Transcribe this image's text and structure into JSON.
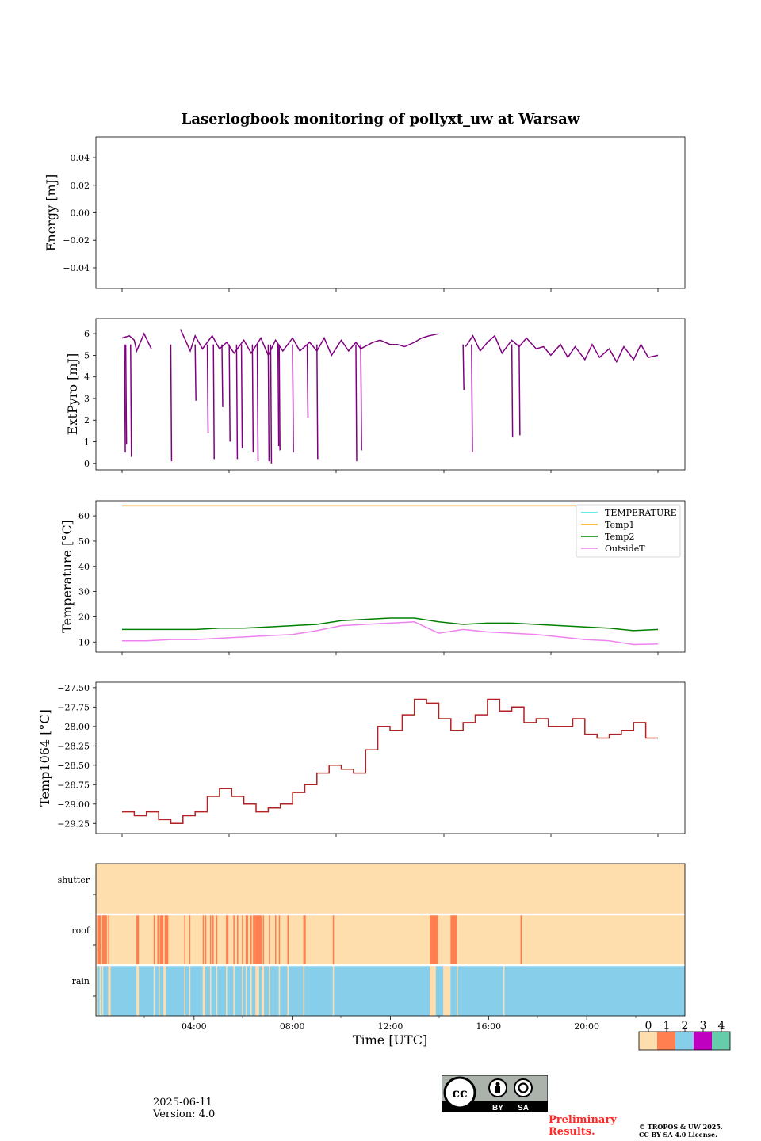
{
  "title": "Laserlogbook monitoring of pollyxt_uw at Warsaw",
  "footer": {
    "date": "2025-06-11",
    "version": "Version: 4.0",
    "preliminary_line1": "Preliminary",
    "preliminary_line2": "Results.",
    "copyright_line1": "© TROPOS & UW 2025.",
    "copyright_line2": "CC BY SA 4.0 License.",
    "license_badge": {
      "by": "BY",
      "sa": "SA",
      "cc": "cc"
    }
  },
  "chart_data": [
    {
      "type": "line",
      "panel": "energy",
      "ylabel": "Energy [mJ]",
      "ylim": [
        -0.055,
        0.055
      ],
      "yticks": [
        "0.04",
        "0.02",
        "0.00",
        "−0.02",
        "−0.04"
      ],
      "ytick_values": [
        0.04,
        0.02,
        0.0,
        -0.02,
        -0.04
      ],
      "series": []
    },
    {
      "type": "line",
      "panel": "extpyro",
      "ylabel": "ExtPyro [mJ]",
      "ylim": [
        -0.3,
        6.7
      ],
      "yticks": [
        "6",
        "5",
        "4",
        "3",
        "2",
        "1",
        "0"
      ],
      "ytick_values": [
        6,
        5,
        4,
        3,
        2,
        1,
        0
      ],
      "color": "#800080",
      "baseline_hours": [
        0.0,
        0.3,
        0.5,
        0.6,
        0.9,
        1.2,
        1.6,
        2.0,
        2.4,
        2.8,
        3.0,
        3.3,
        3.7,
        4.0,
        4.3,
        4.6,
        5.0,
        5.3,
        5.7,
        6.0,
        6.3,
        6.6,
        7.0,
        7.3,
        7.7,
        8.0,
        8.3,
        8.6,
        9.0,
        9.3,
        9.6,
        9.8,
        10.3,
        10.6,
        11.0,
        11.3,
        11.6,
        12.0,
        12.3,
        12.6,
        13.0,
        13.3,
        13.6,
        13.8,
        14.1,
        14.4,
        14.7,
        15.0,
        15.3,
        15.6,
        16.0,
        16.3,
        16.6,
        17.0,
        17.3,
        17.6,
        18.0,
        18.3,
        18.6,
        19.0,
        19.3,
        19.6,
        20.0,
        20.3,
        20.6,
        21.0,
        21.3,
        21.6,
        22.0
      ],
      "baseline_values": [
        5.8,
        5.9,
        5.7,
        5.2,
        6.0,
        5.3,
        null,
        null,
        6.2,
        5.2,
        5.9,
        5.3,
        5.9,
        5.3,
        5.6,
        5.1,
        5.7,
        5.1,
        5.8,
        5.0,
        5.7,
        5.2,
        5.8,
        5.2,
        5.6,
        5.2,
        5.8,
        5.0,
        5.7,
        5.2,
        5.6,
        5.3,
        5.6,
        5.7,
        5.5,
        5.5,
        5.4,
        5.6,
        5.8,
        5.9,
        6.0,
        null,
        null,
        null,
        5.4,
        5.9,
        5.2,
        5.6,
        5.9,
        5.1,
        5.7,
        5.4,
        5.8,
        5.3,
        5.4,
        5.0,
        5.5,
        4.9,
        5.4,
        4.8,
        5.5,
        4.9,
        5.3,
        4.7,
        5.4,
        4.8,
        5.5,
        4.9,
        5.0
      ],
      "dips_hours": [
        0.1,
        0.15,
        0.35,
        2.0,
        3.0,
        3.5,
        3.75,
        4.1,
        4.4,
        4.7,
        4.9,
        5.35,
        5.55,
        6.0,
        6.1,
        6.4,
        6.45,
        7.0,
        7.6,
        8.0,
        9.6,
        9.8,
        14.0,
        14.35,
        16.0,
        16.3
      ],
      "dips_values": [
        0.5,
        0.9,
        0.3,
        0.1,
        2.9,
        1.4,
        0.2,
        2.6,
        1.0,
        0.2,
        0.7,
        0.5,
        0.1,
        0.1,
        0.0,
        0.8,
        0.6,
        0.5,
        2.1,
        0.2,
        0.1,
        0.6,
        3.4,
        0.5,
        1.2,
        1.3
      ]
    },
    {
      "type": "line",
      "panel": "temperature",
      "ylabel": "Temperature [°C]",
      "ylim": [
        6,
        66
      ],
      "yticks": [
        "60",
        "50",
        "40",
        "30",
        "20",
        "10"
      ],
      "ytick_values": [
        60,
        50,
        40,
        30,
        20,
        10
      ],
      "legend_placement": "upper right",
      "series": [
        {
          "name": "TEMPERATURE",
          "color": "#33e6e6",
          "values": []
        },
        {
          "name": "Temp1",
          "color": "#ffa500",
          "x": [
            0,
            22
          ],
          "values": [
            64,
            64
          ]
        },
        {
          "name": "Temp2",
          "color": "#008000",
          "x": [
            0,
            1,
            2,
            3,
            4,
            5,
            6,
            7,
            8,
            9,
            10,
            11,
            12,
            13,
            14,
            15,
            16,
            17,
            18,
            19,
            20,
            21,
            22
          ],
          "values": [
            15,
            15,
            15,
            15,
            15.5,
            15.5,
            16,
            16.5,
            17,
            18.5,
            19,
            19.5,
            19.5,
            18,
            17,
            17.5,
            17.5,
            17,
            16.5,
            16,
            15.5,
            14.5,
            15
          ]
        },
        {
          "name": "OutsideT",
          "color": "#ee82ee",
          "x": [
            0,
            1,
            2,
            3,
            4,
            5,
            6,
            7,
            8,
            9,
            10,
            11,
            12,
            13,
            14,
            15,
            16,
            17,
            18,
            19,
            20,
            21,
            22
          ],
          "values": [
            10.5,
            10.5,
            11,
            11,
            11.5,
            12,
            12.5,
            13,
            14.5,
            16.5,
            17,
            17.5,
            18,
            13.5,
            15,
            14,
            13.5,
            13,
            12,
            11,
            10.5,
            9,
            9.2
          ]
        }
      ]
    },
    {
      "type": "line",
      "panel": "temp1064",
      "ylabel": "Temp1064 [°C]",
      "ylim": [
        -29.38,
        -27.43
      ],
      "yticks": [
        "−27.50",
        "−27.75",
        "−28.00",
        "−28.25",
        "−28.50",
        "−28.75",
        "−29.00",
        "−29.25"
      ],
      "ytick_values": [
        -27.5,
        -27.75,
        -28.0,
        -28.25,
        -28.5,
        -28.75,
        -29.0,
        -29.25
      ],
      "color": "#b22222",
      "x": [
        0,
        0.5,
        1.0,
        1.5,
        2.0,
        2.5,
        3.0,
        3.5,
        4.0,
        4.5,
        5.0,
        5.5,
        6.0,
        6.5,
        7.0,
        7.5,
        8.0,
        8.5,
        9.0,
        9.5,
        10.0,
        10.5,
        11.0,
        11.5,
        12.0,
        12.5,
        13.0,
        13.5,
        14.0,
        14.5,
        15.0,
        15.5,
        16.0,
        16.5,
        17.0,
        17.5,
        18.0,
        18.5,
        19.0,
        19.5,
        20.0,
        20.5,
        21.0,
        21.5,
        22.0
      ],
      "values": [
        -29.1,
        -29.15,
        -29.1,
        -29.2,
        -29.25,
        -29.15,
        -29.1,
        -28.9,
        -28.8,
        -28.9,
        -29.0,
        -29.1,
        -29.05,
        -29.0,
        -28.85,
        -28.75,
        -28.6,
        -28.5,
        -28.55,
        -28.6,
        -28.3,
        -28.0,
        -28.05,
        -27.85,
        -27.65,
        -27.7,
        -27.9,
        -28.05,
        -27.95,
        -27.85,
        -27.65,
        -27.8,
        -27.75,
        -27.95,
        -27.9,
        -28.0,
        -28.0,
        -27.9,
        -28.1,
        -28.15,
        -28.1,
        -28.05,
        -27.95,
        -28.15,
        -28.15
      ],
      "grid": false
    },
    {
      "type": "heatmap",
      "panel": "status",
      "rows": [
        "shutter",
        "roof",
        "rain"
      ],
      "xlabel": "Time [UTC]",
      "xticks": [
        "04:00",
        "08:00",
        "12:00",
        "16:00",
        "20:00"
      ],
      "xtick_hours": [
        4,
        8,
        12,
        16,
        20
      ],
      "xlim_hours": [
        0,
        24
      ],
      "shutter": [
        {
          "from": 0,
          "to": 24,
          "code": 0
        }
      ],
      "roof_code1_intervals": [
        [
          0.05,
          0.2
        ],
        [
          0.25,
          0.45
        ],
        [
          0.5,
          0.55
        ],
        [
          1.65,
          1.75
        ],
        [
          2.35,
          2.4
        ],
        [
          2.5,
          2.55
        ],
        [
          2.6,
          2.75
        ],
        [
          2.8,
          2.95
        ],
        [
          3.6,
          3.65
        ],
        [
          3.8,
          3.85
        ],
        [
          4.35,
          4.4
        ],
        [
          4.45,
          4.5
        ],
        [
          4.65,
          4.7
        ],
        [
          4.75,
          4.8
        ],
        [
          4.9,
          4.95
        ],
        [
          5.3,
          5.4
        ],
        [
          5.6,
          5.65
        ],
        [
          5.75,
          5.8
        ],
        [
          5.95,
          6.0
        ],
        [
          6.1,
          6.2
        ],
        [
          6.3,
          6.35
        ],
        [
          6.4,
          6.5
        ],
        [
          6.5,
          6.75
        ],
        [
          6.8,
          6.85
        ],
        [
          7.05,
          7.1
        ],
        [
          7.3,
          7.35
        ],
        [
          7.45,
          7.5
        ],
        [
          7.8,
          7.85
        ],
        [
          8.45,
          8.55
        ],
        [
          9.65,
          9.7
        ],
        [
          13.6,
          13.95
        ],
        [
          14.45,
          14.7
        ],
        [
          17.3,
          17.35
        ]
      ],
      "rain_code0_intervals": [
        [
          0.0,
          0.05
        ],
        [
          0.15,
          0.2
        ],
        [
          0.25,
          0.3
        ],
        [
          0.5,
          0.6
        ],
        [
          1.65,
          1.75
        ],
        [
          2.35,
          2.4
        ],
        [
          2.55,
          2.6
        ],
        [
          2.75,
          2.85
        ],
        [
          3.6,
          3.65
        ],
        [
          3.8,
          3.85
        ],
        [
          4.35,
          4.45
        ],
        [
          4.65,
          4.7
        ],
        [
          4.9,
          4.95
        ],
        [
          5.3,
          5.35
        ],
        [
          5.6,
          5.65
        ],
        [
          5.95,
          6.0
        ],
        [
          6.1,
          6.15
        ],
        [
          6.3,
          6.35
        ],
        [
          6.5,
          6.65
        ],
        [
          6.75,
          6.85
        ],
        [
          7.05,
          7.1
        ],
        [
          7.45,
          7.5
        ],
        [
          7.8,
          7.85
        ],
        [
          8.45,
          8.5
        ],
        [
          9.65,
          9.7
        ],
        [
          13.6,
          13.85
        ],
        [
          14.15,
          14.45
        ],
        [
          14.7,
          14.75
        ],
        [
          16.6,
          16.65
        ]
      ],
      "colorbar": {
        "labels": [
          "0",
          "1",
          "2",
          "3",
          "4"
        ],
        "colors": [
          "#ffdead",
          "#ff7f50",
          "#87ceeb",
          "#c000c0",
          "#66cdaa"
        ]
      }
    }
  ]
}
